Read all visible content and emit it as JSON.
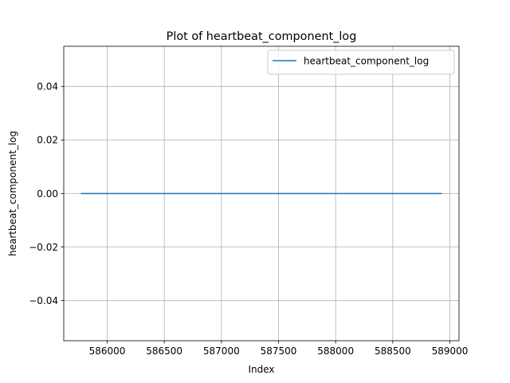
{
  "chart_data": {
    "type": "line",
    "title": "Plot of heartbeat_component_log",
    "xlabel": "Index",
    "ylabel": "heartbeat_component_log",
    "xlim": [
      585620,
      589080
    ],
    "ylim": [
      -0.055,
      0.055
    ],
    "xticks": [
      586000,
      586500,
      587000,
      587500,
      588000,
      588500,
      589000
    ],
    "xtick_labels": [
      "586000",
      "586500",
      "587000",
      "587500",
      "588000",
      "588500",
      "589000"
    ],
    "yticks": [
      -0.04,
      -0.02,
      0.0,
      0.02,
      0.04
    ],
    "ytick_labels": [
      "−0.04",
      "−0.02",
      "0.00",
      "0.02",
      "0.04"
    ],
    "grid": true,
    "legend_position": "top-right",
    "series": [
      {
        "name": "heartbeat_component_log",
        "color": "#1f77b4",
        "x": [
          585775,
          588925
        ],
        "y": [
          0.0,
          0.0
        ]
      }
    ]
  }
}
